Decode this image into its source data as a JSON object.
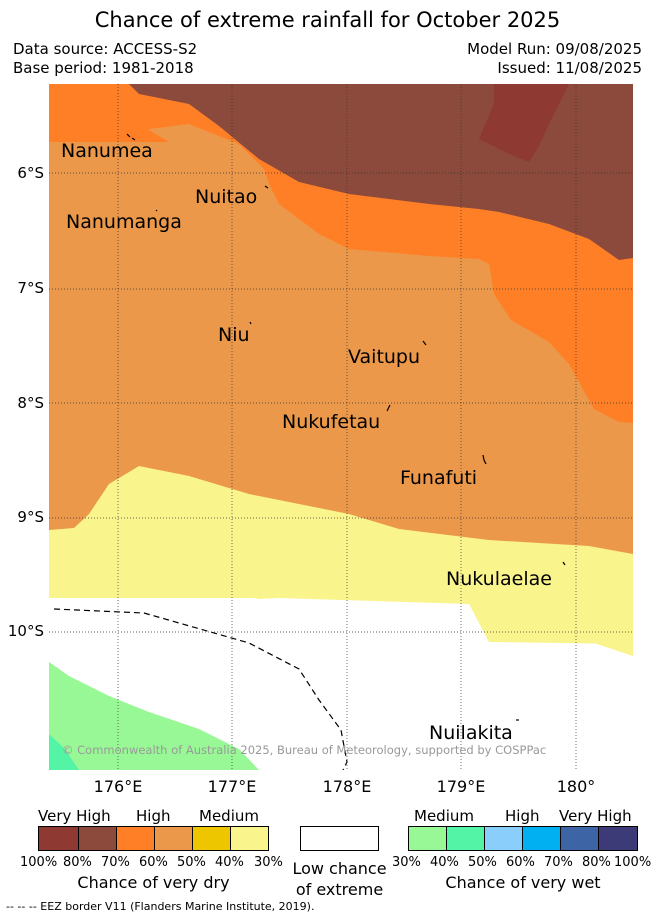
{
  "title": "Chance of extreme rainfall for October 2025",
  "meta": {
    "data_source": "Data source: ACCESS-S2",
    "base_period": "Base period: 1981-2018",
    "model_run": "Model Run: 09/08/2025",
    "issued": "Issued: 11/08/2025"
  },
  "map": {
    "lat_labels": [
      "6°S",
      "7°S",
      "8°S",
      "9°S",
      "10°S"
    ],
    "lon_labels": [
      "176°E",
      "177°E",
      "178°E",
      "179°E",
      "180°"
    ],
    "places": [
      "Nanumea",
      "Nuitao",
      "Nanumanga",
      "Niu",
      "Vaitupu",
      "Nukufetau",
      "Funafuti",
      "Nukulaelae",
      "Nuilakita"
    ],
    "copyright": "© Commonwealth of Australia 2025, Bureau of Meteorology, supported by COSPPac",
    "colors": {
      "very_high_dry": "#8B4A3C",
      "very_high_dry_core": "#8E3932",
      "high_dry": "#FF7F27",
      "medium_high_dry": "#EB984A",
      "medium_dry": "#EDC600",
      "low_dry": "#FAF48D",
      "low_chance": "#FFFFFF",
      "medium_wet": "#99F896",
      "medium_high_wet": "#54F4A6"
    }
  },
  "legend": {
    "dry": {
      "categories": [
        "Very High",
        "High",
        "Medium"
      ],
      "percents": [
        "100%",
        "80%",
        "70%",
        "60%",
        "50%",
        "40%",
        "30%"
      ],
      "colors": [
        "#8E3932",
        "#8B4A3C",
        "#FF7F27",
        "#EB984A",
        "#EDC600",
        "#FAF48D"
      ],
      "title": "Chance of very dry"
    },
    "neutral": {
      "title_line1": "Low chance",
      "title_line2": "of extreme",
      "color": "#FFFFFF"
    },
    "wet": {
      "categories": [
        "Medium",
        "High",
        "Very High"
      ],
      "percents": [
        "30%",
        "40%",
        "50%",
        "60%",
        "70%",
        "80%",
        "100%"
      ],
      "colors": [
        "#99F896",
        "#54F4A6",
        "#8ACEFB",
        "#00B0F0",
        "#3D65A6",
        "#3D3A78"
      ],
      "title": "Chance of very wet"
    }
  },
  "eez_note": "--  --  -- EEZ border V11 (Flanders Marine Institute, 2019)."
}
